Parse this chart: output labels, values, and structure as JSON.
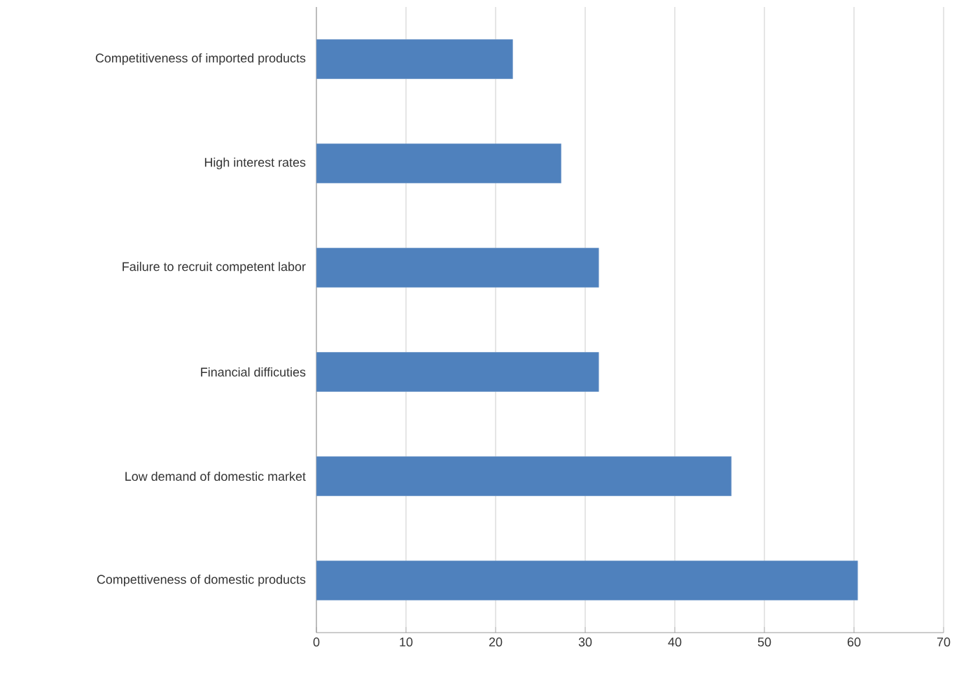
{
  "chart_data": {
    "type": "bar",
    "orientation": "horizontal",
    "categories": [
      "Competitiveness of imported products",
      "High interest rates",
      "Failure to recruit competent labor",
      "Financial difficuties",
      "Low demand of domestic market",
      "Compettiveness of domestic products"
    ],
    "values": [
      21.9,
      27.3,
      31.5,
      31.5,
      46.3,
      60.4
    ],
    "color": "#4f81bd",
    "xlim": [
      0,
      70
    ],
    "xticks": [
      0,
      10,
      20,
      30,
      40,
      50,
      60,
      70
    ],
    "grid": "x"
  }
}
